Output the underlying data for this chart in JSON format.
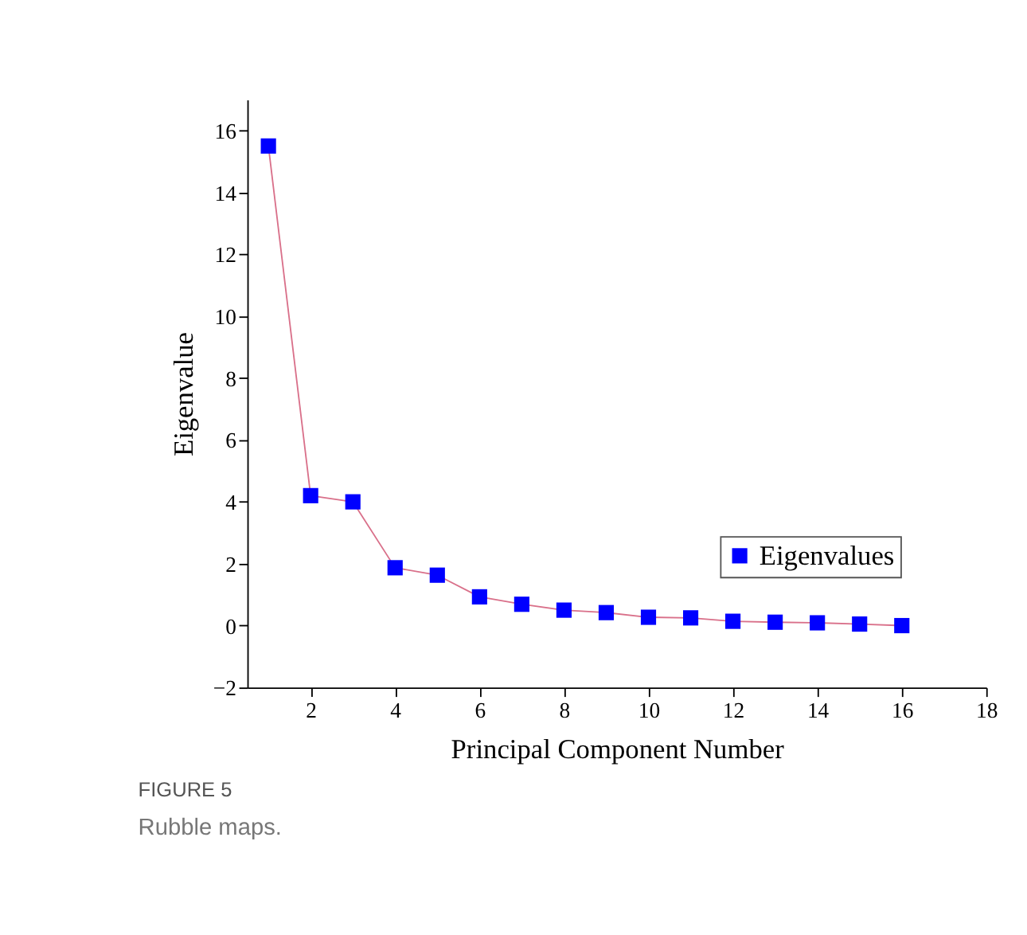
{
  "chart_data": {
    "type": "line",
    "xlabel": "Principal Component Number",
    "ylabel": "Eigenvalue",
    "x": [
      1,
      2,
      3,
      4,
      5,
      6,
      7,
      8,
      9,
      10,
      11,
      12,
      13,
      14,
      15,
      16
    ],
    "series": [
      {
        "name": "Eigenvalues",
        "color": "#0000ff",
        "values": [
          15.5,
          4.2,
          4.0,
          1.87,
          1.63,
          0.93,
          0.69,
          0.5,
          0.42,
          0.27,
          0.25,
          0.14,
          0.11,
          0.09,
          0.05,
          0.0
        ]
      }
    ],
    "xlim": [
      0.5,
      18
    ],
    "xticks": [
      2,
      4,
      6,
      8,
      10,
      12,
      14,
      16,
      18
    ],
    "ylim": [
      -2,
      17
    ],
    "yticks": [
      -2,
      0,
      2,
      4,
      6,
      8,
      10,
      12,
      14,
      16
    ],
    "marker": "square",
    "line_style": "solid",
    "grid": false,
    "legend": "right",
    "annotations": [
      "FIGURE 5",
      "Rubble maps."
    ]
  }
}
